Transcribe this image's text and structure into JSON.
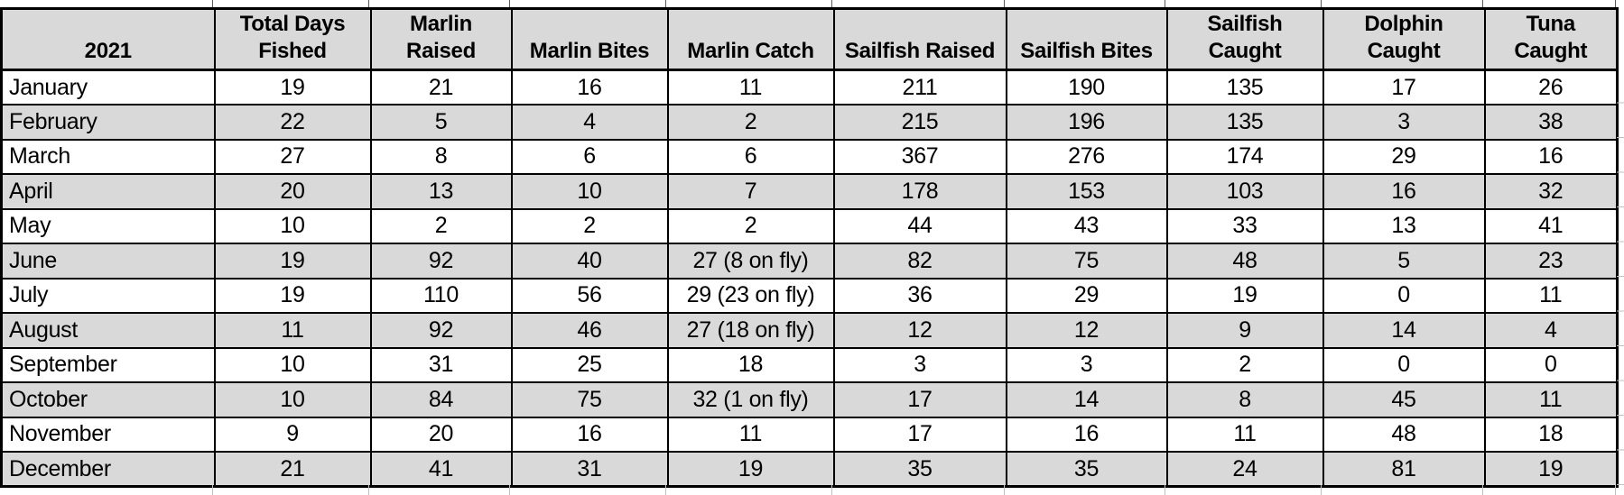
{
  "table": {
    "year": "2021",
    "headers": [
      "2021",
      "Total Days\nFished",
      "Marlin\nRaised",
      "Marlin Bites",
      "Marlin Catch",
      "Sailfish Raised",
      "Sailfish Bites",
      "Sailfish\nCaught",
      "Dolphin\nCaught",
      "Tuna\nCaught"
    ],
    "rows": [
      {
        "month": "January",
        "values": [
          "19",
          "21",
          "16",
          "11",
          "211",
          "190",
          "135",
          "17",
          "26"
        ]
      },
      {
        "month": "February",
        "values": [
          "22",
          "5",
          "4",
          "2",
          "215",
          "196",
          "135",
          "3",
          "38"
        ]
      },
      {
        "month": "March",
        "values": [
          "27",
          "8",
          "6",
          "6",
          "367",
          "276",
          "174",
          "29",
          "16"
        ]
      },
      {
        "month": "April",
        "values": [
          "20",
          "13",
          "10",
          "7",
          "178",
          "153",
          "103",
          "16",
          "32"
        ]
      },
      {
        "month": "May",
        "values": [
          "10",
          "2",
          "2",
          "2",
          "44",
          "43",
          "33",
          "13",
          "41"
        ]
      },
      {
        "month": "June",
        "values": [
          "19",
          "92",
          "40",
          "27 (8 on fly)",
          "82",
          "75",
          "48",
          "5",
          "23"
        ]
      },
      {
        "month": "July",
        "values": [
          "19",
          "110",
          "56",
          "29 (23 on fly)",
          "36",
          "29",
          "19",
          "0",
          "11"
        ]
      },
      {
        "month": "August",
        "values": [
          "11",
          "92",
          "46",
          "27 (18 on fly)",
          "12",
          "12",
          "9",
          "14",
          "4"
        ]
      },
      {
        "month": "September",
        "values": [
          "10",
          "31",
          "25",
          "18",
          "3",
          "3",
          "2",
          "0",
          "0"
        ]
      },
      {
        "month": "October",
        "values": [
          "10",
          "84",
          "75",
          "32 (1 on fly)",
          "17",
          "14",
          "8",
          "45",
          "11"
        ]
      },
      {
        "month": "November",
        "values": [
          "9",
          "20",
          "16",
          "11",
          "17",
          "16",
          "11",
          "48",
          "18"
        ]
      },
      {
        "month": "December",
        "values": [
          "21",
          "41",
          "31",
          "19",
          "35",
          "35",
          "24",
          "81",
          "19"
        ]
      }
    ],
    "colors": {
      "header_bg": "#d9d9d9",
      "alt_row_bg": "#d9d9d9",
      "row_bg": "#ffffff",
      "border": "#000000",
      "outside_gridline": "#bfbfbf"
    }
  }
}
